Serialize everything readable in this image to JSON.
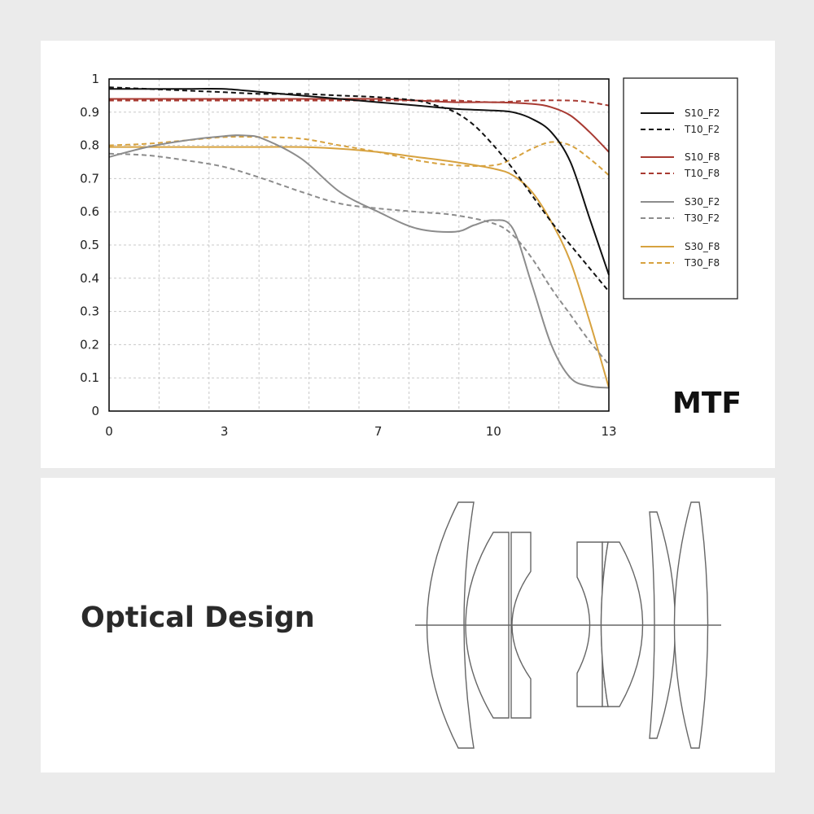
{
  "mtf_title": "MTF",
  "optical_title": "Optical Design",
  "colors": {
    "black": "#111111",
    "red": "#a83a32",
    "gray": "#8c8c8c",
    "gold": "#d7a23f"
  },
  "chart_data": {
    "type": "line",
    "title": "MTF",
    "xlabel": "",
    "ylabel": "",
    "xlim": [
      0,
      13
    ],
    "ylim": [
      0,
      1
    ],
    "x_ticks": [
      0,
      3,
      7,
      10,
      13
    ],
    "y_ticks": [
      0,
      0.1,
      0.2,
      0.3,
      0.4,
      0.5,
      0.6,
      0.7,
      0.8,
      0.9,
      1
    ],
    "grid": true,
    "legend_position": "right",
    "series": [
      {
        "name": "S10_F2",
        "color": "#111111",
        "dash": false,
        "x": [
          0,
          1,
          2,
          3,
          4,
          5,
          6,
          7,
          8,
          9,
          10,
          10.5,
          11,
          11.5,
          12,
          12.5,
          13
        ],
        "y": [
          0.97,
          0.97,
          0.97,
          0.97,
          0.96,
          0.95,
          0.94,
          0.93,
          0.92,
          0.91,
          0.905,
          0.9,
          0.88,
          0.84,
          0.75,
          0.58,
          0.41
        ]
      },
      {
        "name": "T10_F2",
        "color": "#111111",
        "dash": true,
        "x": [
          0,
          1,
          2,
          3,
          4,
          5,
          6,
          7,
          8,
          8.5,
          9,
          9.5,
          10,
          10.5,
          11,
          11.5,
          12,
          12.5,
          13
        ],
        "y": [
          0.975,
          0.97,
          0.965,
          0.96,
          0.955,
          0.955,
          0.95,
          0.945,
          0.935,
          0.92,
          0.9,
          0.86,
          0.8,
          0.73,
          0.65,
          0.57,
          0.5,
          0.43,
          0.36
        ]
      },
      {
        "name": "S10_F8",
        "color": "#a83a32",
        "dash": false,
        "x": [
          0,
          1,
          2,
          3,
          4,
          5,
          6,
          7,
          8,
          9,
          10,
          11,
          11.5,
          12,
          12.5,
          13
        ],
        "y": [
          0.94,
          0.94,
          0.94,
          0.94,
          0.94,
          0.94,
          0.94,
          0.94,
          0.935,
          0.93,
          0.93,
          0.925,
          0.915,
          0.89,
          0.84,
          0.78
        ]
      },
      {
        "name": "T10_F8",
        "color": "#a83a32",
        "dash": true,
        "x": [
          0,
          1,
          2,
          3,
          4,
          5,
          6,
          7,
          8,
          9,
          10,
          11,
          12,
          12.5,
          13
        ],
        "y": [
          0.935,
          0.935,
          0.935,
          0.935,
          0.935,
          0.935,
          0.935,
          0.935,
          0.935,
          0.935,
          0.93,
          0.935,
          0.935,
          0.93,
          0.92
        ]
      },
      {
        "name": "S30_F2",
        "color": "#8c8c8c",
        "dash": false,
        "x": [
          0,
          1,
          2,
          3,
          3.5,
          4,
          5,
          6,
          7,
          8,
          9,
          9.5,
          10,
          10.5,
          11,
          11.5,
          12,
          12.5,
          13
        ],
        "y": [
          0.765,
          0.795,
          0.815,
          0.828,
          0.83,
          0.82,
          0.76,
          0.66,
          0.6,
          0.55,
          0.54,
          0.56,
          0.575,
          0.55,
          0.38,
          0.2,
          0.1,
          0.075,
          0.07
        ]
      },
      {
        "name": "T30_F2",
        "color": "#8c8c8c",
        "dash": true,
        "x": [
          0,
          1,
          2,
          3,
          4,
          5,
          6,
          7,
          8,
          9,
          10,
          10.5,
          11,
          11.5,
          12,
          12.5,
          13
        ],
        "y": [
          0.775,
          0.77,
          0.755,
          0.735,
          0.7,
          0.66,
          0.625,
          0.61,
          0.6,
          0.59,
          0.565,
          0.53,
          0.46,
          0.37,
          0.29,
          0.21,
          0.14
        ]
      },
      {
        "name": "S30_F8",
        "color": "#d7a23f",
        "dash": false,
        "x": [
          0,
          1,
          2,
          3,
          4,
          5,
          6,
          7,
          8,
          9,
          10,
          10.5,
          11,
          11.5,
          12,
          12.5,
          13
        ],
        "y": [
          0.795,
          0.795,
          0.795,
          0.795,
          0.795,
          0.795,
          0.79,
          0.78,
          0.765,
          0.75,
          0.73,
          0.71,
          0.66,
          0.57,
          0.45,
          0.27,
          0.07
        ]
      },
      {
        "name": "T30_F8",
        "color": "#d7a23f",
        "dash": true,
        "x": [
          0,
          1,
          2,
          3,
          4,
          5,
          6,
          7,
          8,
          9,
          10,
          10.5,
          11,
          11.5,
          12,
          12.5,
          13
        ],
        "y": [
          0.8,
          0.805,
          0.815,
          0.825,
          0.825,
          0.82,
          0.8,
          0.78,
          0.755,
          0.74,
          0.74,
          0.76,
          0.79,
          0.81,
          0.8,
          0.76,
          0.71
        ]
      }
    ]
  }
}
